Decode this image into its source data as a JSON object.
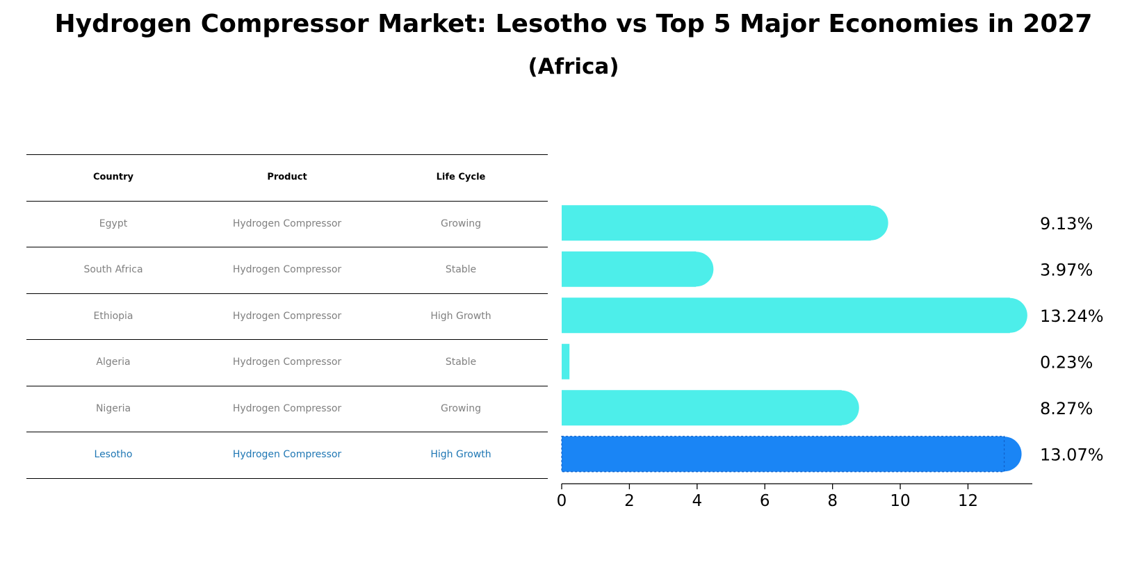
{
  "title": "Hydrogen Compressor Market: Lesotho vs Top 5 Major Economies in 2027",
  "subtitle": "(Africa)",
  "table": {
    "headers": [
      "Country",
      "Product",
      "Life Cycle"
    ],
    "rows": [
      {
        "country": "Egypt",
        "product": "Hydrogen Compressor",
        "life_cycle": "Growing"
      },
      {
        "country": "South Africa",
        "product": "Hydrogen Compressor",
        "life_cycle": "Stable"
      },
      {
        "country": "Ethiopia",
        "product": "Hydrogen Compressor",
        "life_cycle": "High Growth"
      },
      {
        "country": "Algeria",
        "product": "Hydrogen Compressor",
        "life_cycle": "Stable"
      },
      {
        "country": "Nigeria",
        "product": "Hydrogen Compressor",
        "life_cycle": "Growing"
      },
      {
        "country": "Lesotho",
        "product": "Hydrogen Compressor",
        "life_cycle": "High Growth"
      }
    ]
  },
  "colors": {
    "bar": "#4DEEEA",
    "highlight_bar": "#1A85F5",
    "highlight_text": "#1f77b4",
    "muted_text": "#808080"
  },
  "chart_data": {
    "type": "bar",
    "orientation": "horizontal",
    "categories": [
      "Egypt",
      "South Africa",
      "Ethiopia",
      "Algeria",
      "Nigeria",
      "Lesotho"
    ],
    "values": [
      9.13,
      3.97,
      13.24,
      0.23,
      8.27,
      13.07
    ],
    "value_labels": [
      "9.13%",
      "3.97%",
      "13.24%",
      "0.23%",
      "8.27%",
      "13.07%"
    ],
    "highlight": "Lesotho",
    "xlim": [
      0,
      13.9
    ],
    "xticks": [
      0,
      2,
      4,
      6,
      8,
      10,
      12
    ],
    "xlabel": "",
    "ylabel": "",
    "grid": false
  }
}
